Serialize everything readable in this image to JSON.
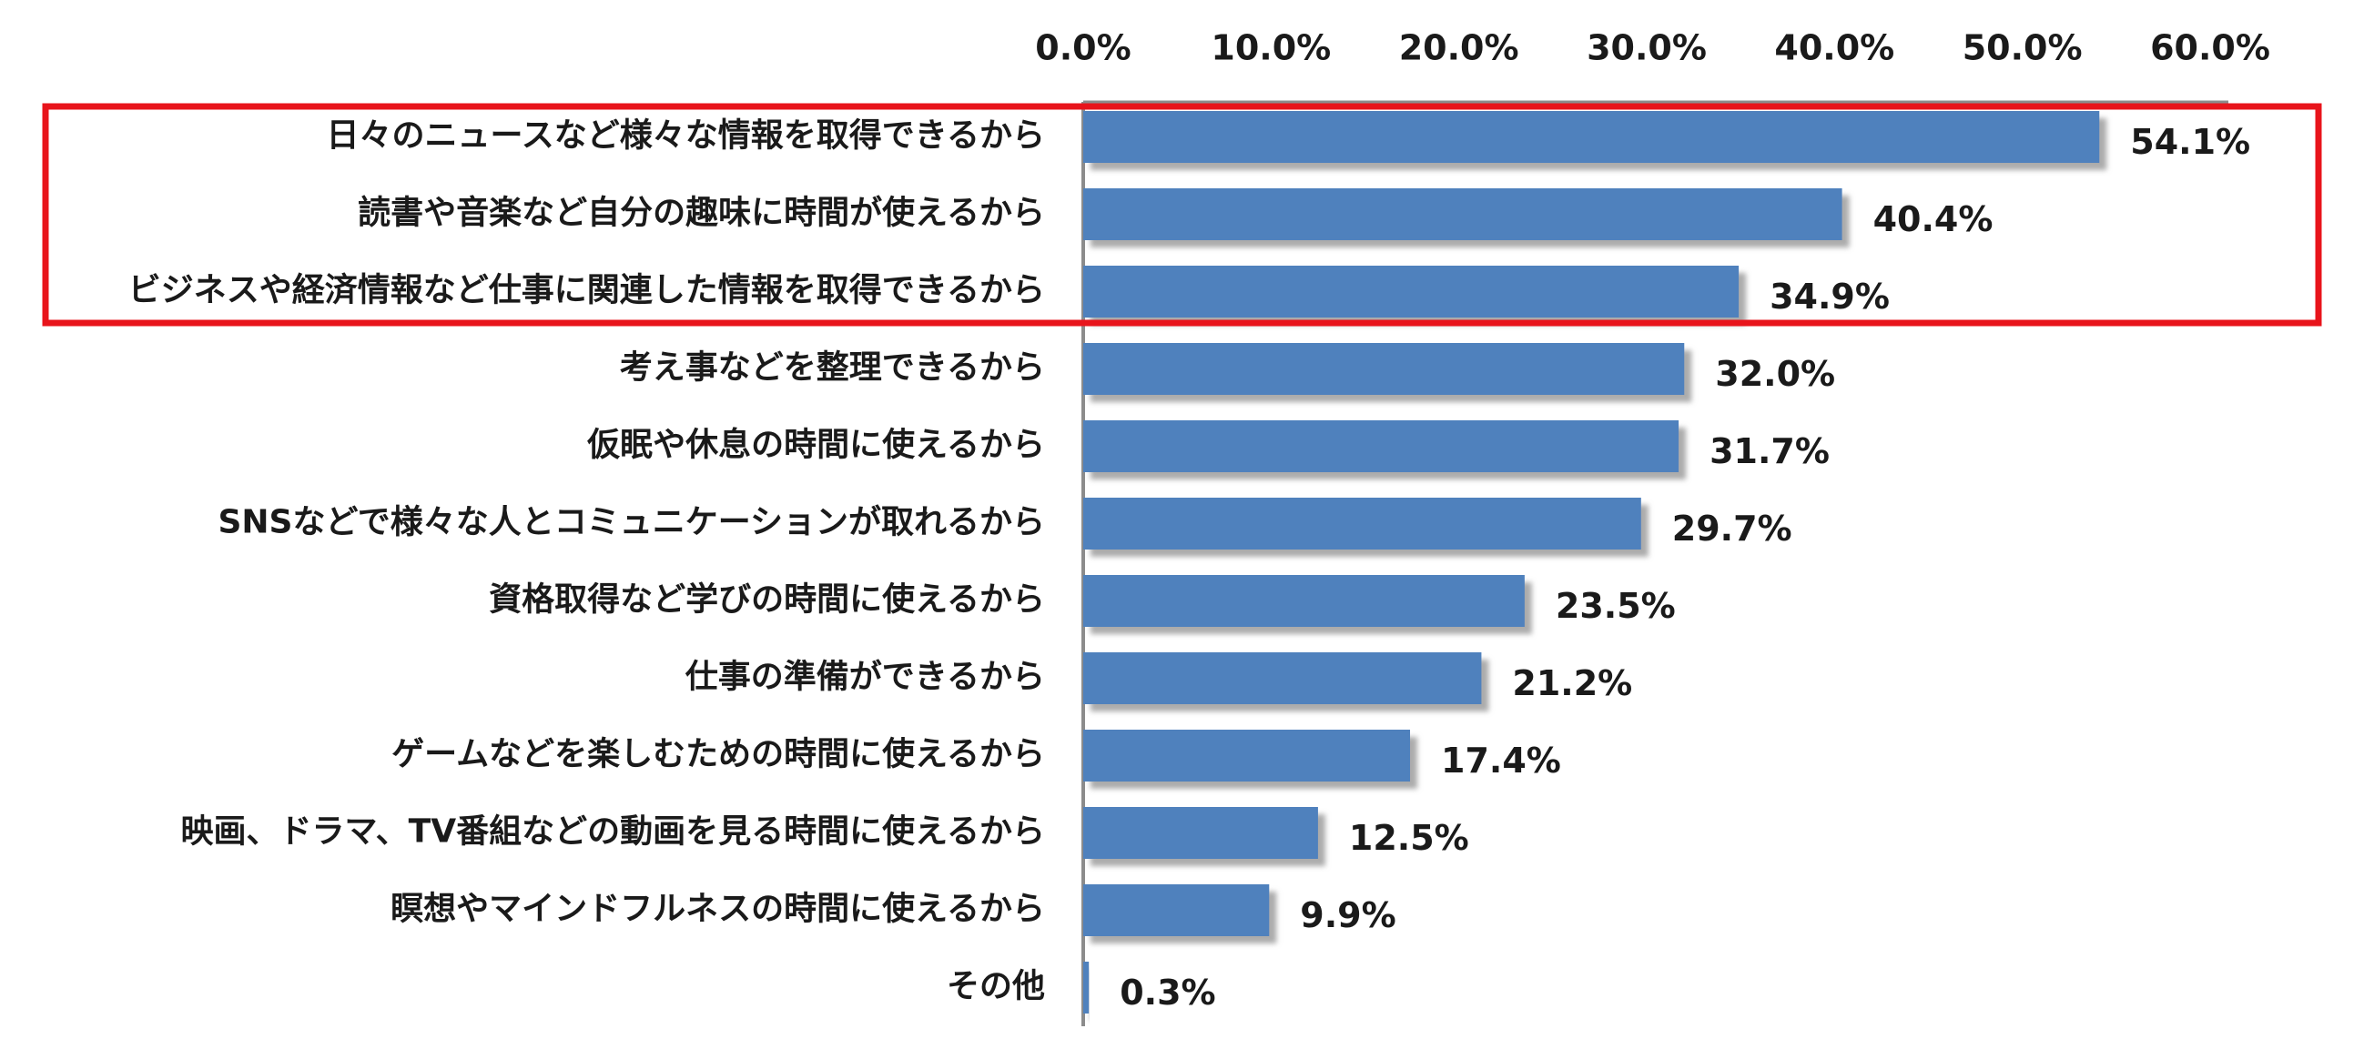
{
  "chart_data": {
    "type": "bar",
    "orientation": "horizontal",
    "categories": [
      "日々のニュースなど様々な情報を取得できるから",
      "読書や音楽など自分の趣味に時間が使えるから",
      "ビジネスや経済情報など仕事に関連した情報を取得できるから",
      "考え事などを整理できるから",
      "仮眠や休息の時間に使えるから",
      "SNSなどで様々な人とコミュニケーションが取れるから",
      "資格取得など学びの時間に使えるから",
      "仕事の準備ができるから",
      "ゲームなどを楽しむための時間に使えるから",
      "映画、ドラマ、TV番組などの動画を見る時間に使えるから",
      "瞑想やマインドフルネスの時間に使えるから",
      "その他"
    ],
    "values": [
      54.1,
      40.4,
      34.9,
      32.0,
      31.7,
      29.7,
      23.5,
      21.2,
      17.4,
      12.5,
      9.9,
      0.3
    ],
    "value_labels": [
      "54.1%",
      "40.4%",
      "34.9%",
      "32.0%",
      "31.7%",
      "29.7%",
      "23.5%",
      "21.2%",
      "17.4%",
      "12.5%",
      "9.9%",
      "0.3%"
    ],
    "xlim": [
      0,
      60
    ],
    "xticks": [
      0,
      10,
      20,
      30,
      40,
      50,
      60
    ],
    "xtick_labels": [
      "0.0%",
      "10.0%",
      "20.0%",
      "30.0%",
      "40.0%",
      "50.0%",
      "60.0%"
    ],
    "x_axis_position": "top",
    "grid": false,
    "legend": "none",
    "highlight": {
      "categories_index_range": [
        0,
        2
      ],
      "color": "#e8141b"
    },
    "colors": {
      "bar": "#4f81bd",
      "shadow": "#9a9a9a",
      "axis": "#8c8c8c"
    }
  }
}
